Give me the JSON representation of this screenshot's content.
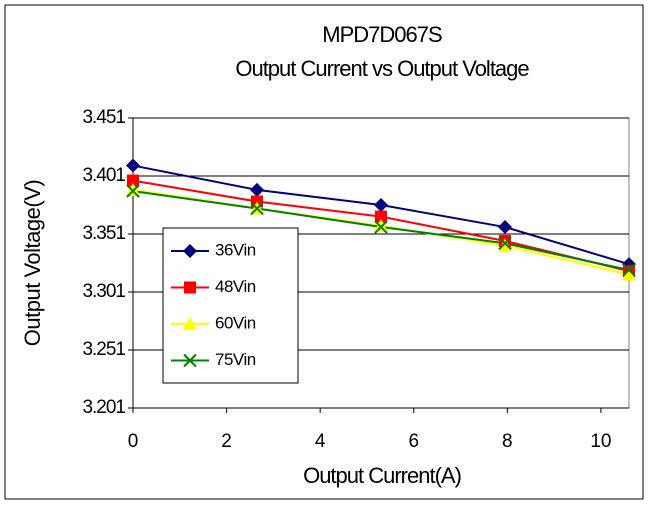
{
  "chart_data": {
    "type": "line",
    "title": "MPD7D067S",
    "subtitle": "Output Current vs Output Voltage",
    "x_label": "Output Current(A)",
    "y_label": "Output Voltage(V)",
    "x": [
      0,
      2.65,
      5.3,
      7.95,
      10.6
    ],
    "series": [
      {
        "name": "36Vin",
        "color": "#000080",
        "marker": "diamond",
        "values": [
          3.41,
          3.389,
          3.376,
          3.357,
          3.325
        ]
      },
      {
        "name": "48Vin",
        "color": "#ff0000",
        "marker": "square",
        "values": [
          3.397,
          3.379,
          3.366,
          3.345,
          3.319
        ]
      },
      {
        "name": "60Vin",
        "color": "#ffff00",
        "marker": "triangle",
        "values": [
          3.389,
          3.373,
          3.358,
          3.341,
          3.316
        ]
      },
      {
        "name": "75Vin",
        "color": "#008000",
        "marker": "x",
        "values": [
          3.388,
          3.373,
          3.357,
          3.343,
          3.32
        ]
      }
    ],
    "xlim": [
      0,
      10.6
    ],
    "xticks": [
      0,
      2,
      4,
      6,
      8,
      10
    ],
    "ylim": [
      3.201,
      3.451
    ],
    "yticks": [
      3.201,
      3.251,
      3.301,
      3.351,
      3.401,
      3.451
    ],
    "grid": true
  }
}
